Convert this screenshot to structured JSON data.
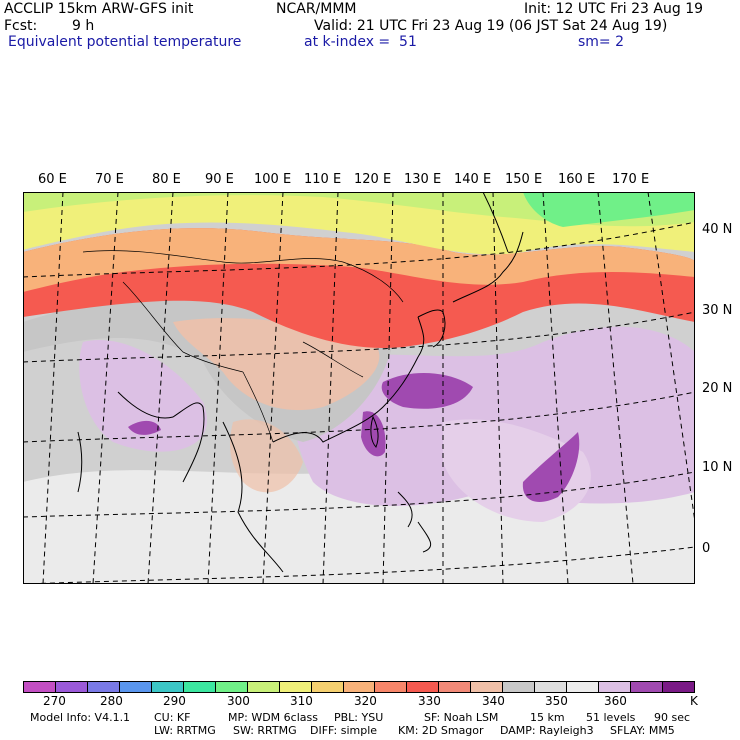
{
  "header": {
    "model": "ACCLIP 15km ARW-GFS init",
    "org": "NCAR/MMM",
    "init": "Init: 12 UTC Fri 23 Aug 19",
    "fcst_label": "Fcst:",
    "fcst_value": "9 h",
    "valid": "Valid: 21 UTC Fri 23 Aug 19 (06 JST Sat 24 Aug 19)",
    "field": "Equivalent potential temperature",
    "level": "at k-index =  51",
    "smooth": "sm= 2"
  },
  "map": {
    "lon_labels": [
      "60 E",
      "70 E",
      "80 E",
      "90 E",
      "100 E",
      "110 E",
      "120 E",
      "130 E",
      "140 E",
      "150 E",
      "160 E",
      "170 E"
    ],
    "lat_labels": [
      "40 N",
      "30 N",
      "20 N",
      "10 N",
      "0"
    ]
  },
  "colorbar": {
    "colors": [
      "#c34fc3",
      "#9b5ad9",
      "#7a7ae6",
      "#5a96ee",
      "#3cc6c6",
      "#3ce6a0",
      "#70f088",
      "#c8f07a",
      "#f0f07a",
      "#f5d070",
      "#f8b27a",
      "#f7866a",
      "#f55a50",
      "#f28a78",
      "#f0c0a8",
      "#c8c8c8",
      "#dedede",
      "#ededed",
      "#dcc0e4",
      "#a04ab0",
      "#7a1a86"
    ],
    "ticks": [
      "270",
      "280",
      "290",
      "300",
      "310",
      "320",
      "330",
      "340",
      "350",
      "360"
    ],
    "unit": "K"
  },
  "model_info": {
    "line1": [
      "Model Info: V4.1.1",
      "CU: KF",
      "MP: WDM 6class",
      "PBL: YSU",
      "SF: Noah LSM",
      "15 km",
      "51 levels",
      "90 sec"
    ],
    "line2": [
      "LW: RRTMG",
      "SW: RRTMG",
      "DIFF: simple",
      "KM: 2D Smagor",
      "DAMP: Rayleigh3",
      "SFLAY: MM5"
    ]
  }
}
